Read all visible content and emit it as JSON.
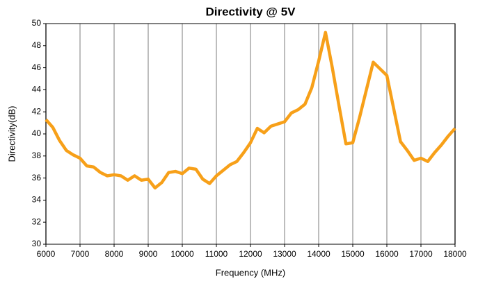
{
  "chart_data": {
    "type": "line",
    "title": "Directivity @ 5V",
    "x_label": "Frequency (MHz)",
    "y_label": "Directivity(dB)",
    "x": [
      6000,
      6200,
      6400,
      6600,
      6800,
      7000,
      7200,
      7400,
      7600,
      7800,
      8000,
      8200,
      8400,
      8600,
      8800,
      9000,
      9200,
      9400,
      9600,
      9800,
      10000,
      10200,
      10400,
      10600,
      10800,
      11000,
      11200,
      11400,
      11600,
      11800,
      12000,
      12200,
      12400,
      12600,
      12800,
      13000,
      13200,
      13400,
      13600,
      13800,
      14000,
      14200,
      14400,
      14600,
      14800,
      15000,
      15200,
      15400,
      15600,
      15800,
      16000,
      16200,
      16400,
      16600,
      16800,
      17000,
      17200,
      17400,
      17600,
      17800,
      18000
    ],
    "series": [
      {
        "name": "Directivity",
        "color": "#f7a019",
        "values": [
          41.3,
          40.6,
          39.4,
          38.5,
          38.1,
          37.8,
          37.1,
          37.0,
          36.5,
          36.2,
          36.3,
          36.2,
          35.8,
          36.2,
          35.8,
          35.9,
          35.1,
          35.6,
          36.5,
          36.6,
          36.4,
          36.9,
          36.8,
          35.9,
          35.5,
          36.2,
          36.7,
          37.2,
          37.5,
          38.3,
          39.2,
          40.5,
          40.1,
          40.7,
          40.9,
          41.1,
          41.9,
          42.2,
          42.7,
          44.2,
          46.6,
          49.2,
          46.0,
          42.5,
          39.1,
          39.2,
          41.5,
          44.0,
          46.5,
          45.9,
          45.3,
          42.3,
          39.3,
          38.5,
          37.6,
          37.8,
          37.5,
          38.3,
          39.0,
          39.8,
          40.5
        ]
      }
    ],
    "xlim": [
      6000,
      18000
    ],
    "xticks": [
      6000,
      7000,
      8000,
      9000,
      10000,
      11000,
      12000,
      13000,
      14000,
      15000,
      16000,
      17000,
      18000
    ],
    "ylim": [
      30,
      50
    ],
    "yticks": [
      30,
      32,
      34,
      36,
      38,
      40,
      42,
      44,
      46,
      48,
      50
    ],
    "grid": "x"
  }
}
